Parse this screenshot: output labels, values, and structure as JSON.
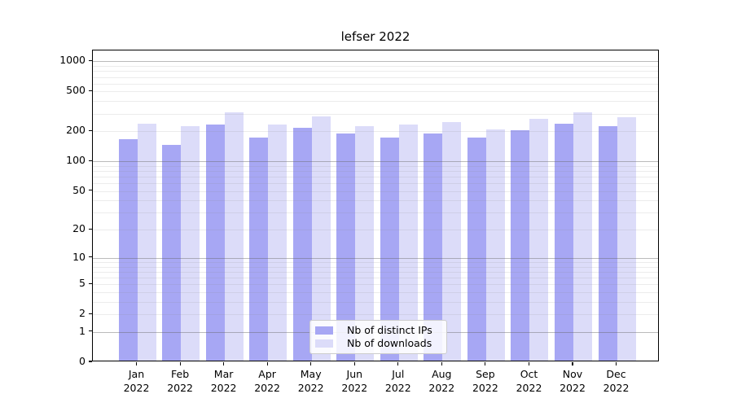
{
  "chart_data": {
    "type": "bar",
    "title": "lefser 2022",
    "categories": [
      "Jan",
      "Feb",
      "Mar",
      "Apr",
      "May",
      "Jun",
      "Jul",
      "Aug",
      "Sep",
      "Oct",
      "Nov",
      "Dec"
    ],
    "x_year_label": "2022",
    "series": [
      {
        "name": "Nb of distinct IPs",
        "color": "#a7a7f4",
        "values": [
          161,
          140,
          225,
          166,
          208,
          183,
          168,
          183,
          168,
          197,
          228,
          217
        ]
      },
      {
        "name": "Nb of downloads",
        "color": "#dcdcf9",
        "values": [
          228,
          215,
          296,
          227,
          274,
          216,
          225,
          238,
          201,
          257,
          296,
          265
        ]
      }
    ],
    "y_axis": {
      "scale": "symlog",
      "ticks": [
        0,
        1,
        2,
        5,
        10,
        20,
        50,
        100,
        200,
        500,
        1000
      ],
      "major_grid_values": [
        1,
        10,
        100,
        1000
      ],
      "max_value": 1285
    },
    "xlabel": "",
    "ylabel": "",
    "grid": true,
    "legend_position": "lower center",
    "background_color": "#ffffff"
  }
}
